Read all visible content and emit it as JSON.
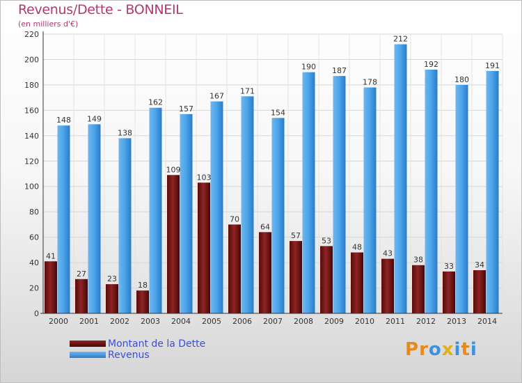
{
  "header": {
    "title": "Revenus/Dette - BONNEIL",
    "subtitle": "(en milliers d'€)"
  },
  "colors": {
    "dette": "#7a1414",
    "revenus": "#3b93dc",
    "title": "#b03a6e",
    "legend_text": "#3a4fd8"
  },
  "legend": {
    "items": [
      {
        "label": "Montant de la Dette",
        "color": "#6b0f0f"
      },
      {
        "label": "Revenus",
        "color": "#3b93dc"
      }
    ]
  },
  "logo": {
    "text": "Proxiti",
    "letters": [
      {
        "ch": "P",
        "color": "#e88a1a"
      },
      {
        "ch": "r",
        "color": "#e88a1a"
      },
      {
        "ch": "o",
        "color": "#3b93dc"
      },
      {
        "ch": "x",
        "color": "#e0b020"
      },
      {
        "ch": "i",
        "color": "#3b93dc"
      },
      {
        "ch": "t",
        "color": "#e88a1a"
      },
      {
        "ch": "i",
        "color": "#3b93dc"
      }
    ]
  },
  "chart_data": {
    "type": "bar",
    "title": "Revenus/Dette - BONNEIL",
    "subtitle": "(en milliers d'€)",
    "categories": [
      "2000",
      "2001",
      "2002",
      "2003",
      "2004",
      "2005",
      "2006",
      "2007",
      "2008",
      "2009",
      "2010",
      "2011",
      "2012",
      "2013",
      "2014"
    ],
    "series": [
      {
        "name": "Montant de la Dette",
        "values": [
          41,
          27,
          23,
          18,
          109,
          103,
          70,
          64,
          57,
          53,
          48,
          43,
          38,
          33,
          34
        ]
      },
      {
        "name": "Revenus",
        "values": [
          148,
          149,
          138,
          162,
          157,
          167,
          171,
          154,
          190,
          187,
          178,
          212,
          192,
          180,
          191
        ]
      }
    ],
    "ylim": [
      0,
      220
    ],
    "yticks": [
      0,
      20,
      40,
      60,
      80,
      100,
      120,
      140,
      160,
      180,
      200,
      220
    ],
    "grid": true,
    "legend_position": "bottom-left"
  }
}
